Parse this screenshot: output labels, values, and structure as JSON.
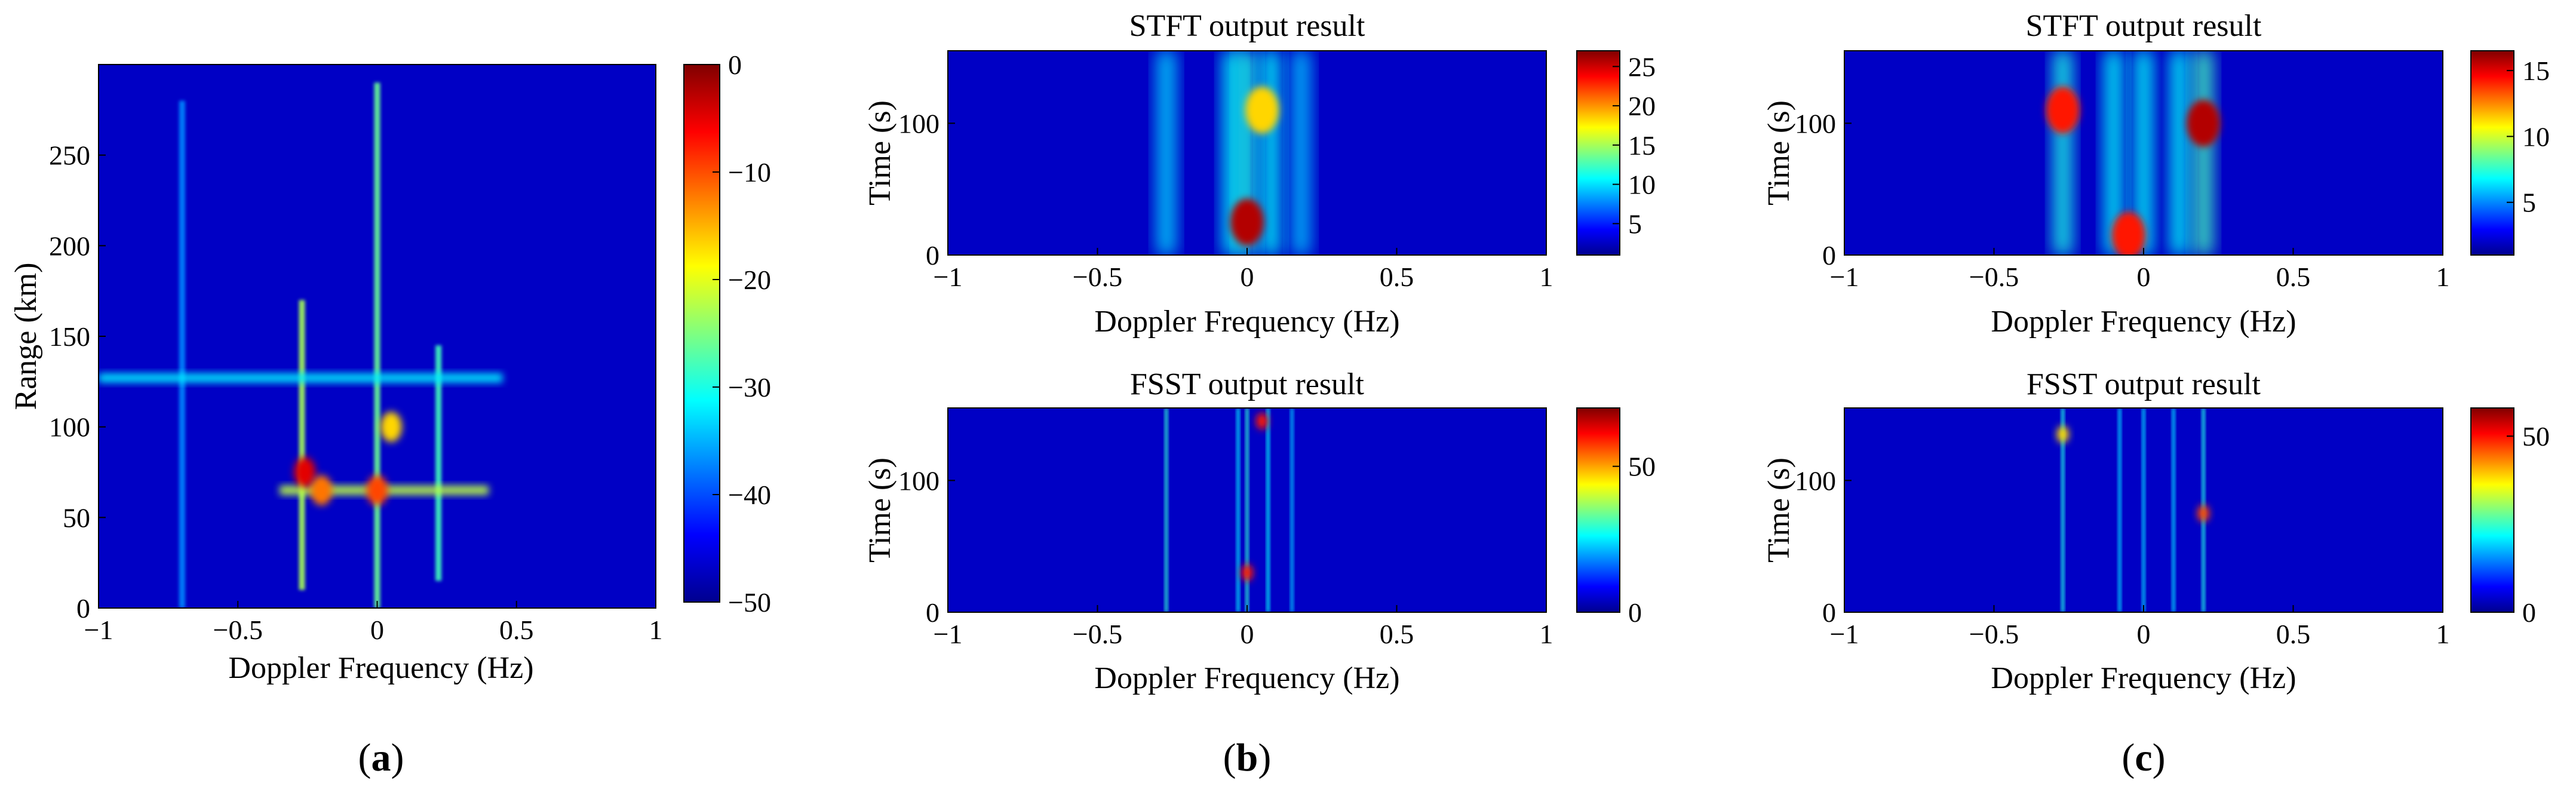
{
  "chart_data": [
    {
      "id": "a",
      "type": "heatmap",
      "title": "",
      "xlabel": "Doppler Frequency (Hz)",
      "ylabel": "Range (km)",
      "xlim": [
        -1,
        1
      ],
      "ylim": [
        0,
        300
      ],
      "xticks": [
        -1,
        -0.5,
        0,
        0.5,
        1
      ],
      "xtick_labels": [
        "−1",
        "−0.5",
        "0",
        "0.5",
        "1"
      ],
      "yticks": [
        0,
        50,
        100,
        150,
        200,
        250
      ],
      "ytick_labels": [
        "0",
        "50",
        "100",
        "150",
        "200",
        "250"
      ],
      "colorbar": {
        "min": -50,
        "max": 0,
        "ticks": [
          0,
          -10,
          -20,
          -30,
          -40,
          -50
        ],
        "tick_labels": [
          "0",
          "−10",
          "−20",
          "−30",
          "−40",
          "−50"
        ]
      },
      "features": [
        {
          "kind": "vline",
          "x": -0.27,
          "y0": 10,
          "y1": 170,
          "level": 0.85
        },
        {
          "kind": "vline",
          "x": 0.0,
          "y0": 0,
          "y1": 290,
          "level": 0.7
        },
        {
          "kind": "vline",
          "x": 0.22,
          "y0": 15,
          "y1": 145,
          "level": 0.6
        },
        {
          "kind": "vline",
          "x": -0.7,
          "y0": 0,
          "y1": 280,
          "level": 0.15
        },
        {
          "kind": "hline",
          "y": 65,
          "x0": -0.35,
          "x1": 0.4,
          "level": 0.8
        },
        {
          "kind": "hline",
          "y": 127,
          "x0": -1.0,
          "x1": 0.45,
          "level": 0.35
        },
        {
          "kind": "blob",
          "x": -0.26,
          "y": 75,
          "level": 0.95
        },
        {
          "kind": "blob",
          "x": -0.2,
          "y": 65,
          "level": 0.8
        },
        {
          "kind": "blob",
          "x": 0.0,
          "y": 65,
          "level": 0.85
        },
        {
          "kind": "blob",
          "x": 0.05,
          "y": 100,
          "level": 0.7
        }
      ],
      "panel_label": "(a)",
      "panel_letter": "a"
    },
    {
      "id": "b-top",
      "type": "heatmap",
      "title": "STFT output result",
      "xlabel": "Doppler Frequency (Hz)",
      "ylabel": "Time (s)",
      "xlim": [
        -1,
        1
      ],
      "ylim": [
        0,
        155
      ],
      "xticks": [
        -1,
        -0.5,
        0,
        0.5,
        1
      ],
      "xtick_labels": [
        "−1",
        "−0.5",
        "0",
        "0.5",
        "1"
      ],
      "yticks": [
        0,
        100
      ],
      "ytick_labels": [
        "0",
        "100"
      ],
      "colorbar": {
        "min": 1,
        "max": 27,
        "ticks": [
          25,
          20,
          15,
          10,
          5
        ],
        "tick_labels": [
          "25",
          "20",
          "15",
          "10",
          "5"
        ]
      },
      "features": [
        {
          "kind": "vline",
          "x": -0.27,
          "y0": 0,
          "y1": 155,
          "level": 0.35
        },
        {
          "kind": "vline",
          "x": -0.05,
          "y0": 0,
          "y1": 155,
          "level": 0.45
        },
        {
          "kind": "vline",
          "x": 0.0,
          "y0": 0,
          "y1": 155,
          "level": 0.5
        },
        {
          "kind": "vline",
          "x": 0.08,
          "y0": 0,
          "y1": 155,
          "level": 0.45
        },
        {
          "kind": "vline",
          "x": 0.18,
          "y0": 0,
          "y1": 155,
          "level": 0.3
        },
        {
          "kind": "blob",
          "x": 0.0,
          "y": 25,
          "level": 1.0
        },
        {
          "kind": "blob",
          "x": 0.05,
          "y": 110,
          "level": 0.7
        }
      ]
    },
    {
      "id": "b-bottom",
      "type": "heatmap",
      "title": "FSST output result",
      "xlabel": "Doppler Frequency (Hz)",
      "ylabel": "Time (s)",
      "xlim": [
        -1,
        1
      ],
      "ylim": [
        0,
        155
      ],
      "xticks": [
        -1,
        -0.5,
        0,
        0.5,
        1
      ],
      "xtick_labels": [
        "−1",
        "−0.5",
        "0",
        "0.5",
        "1"
      ],
      "yticks": [
        0,
        100
      ],
      "ytick_labels": [
        "0",
        "100"
      ],
      "colorbar": {
        "min": 0,
        "max": 70,
        "ticks": [
          50,
          0
        ],
        "tick_labels": [
          "50",
          "0"
        ]
      },
      "features": [
        {
          "kind": "vline",
          "x": -0.27,
          "y0": 0,
          "y1": 155,
          "level": 0.55
        },
        {
          "kind": "vline",
          "x": -0.03,
          "y0": 0,
          "y1": 155,
          "level": 0.4
        },
        {
          "kind": "vline",
          "x": 0.0,
          "y0": 0,
          "y1": 155,
          "level": 0.55
        },
        {
          "kind": "vline",
          "x": 0.07,
          "y0": 0,
          "y1": 155,
          "level": 0.45
        },
        {
          "kind": "vline",
          "x": 0.15,
          "y0": 0,
          "y1": 155,
          "level": 0.3
        },
        {
          "kind": "blob",
          "x": 0.0,
          "y": 30,
          "level": 0.9
        },
        {
          "kind": "blob",
          "x": 0.05,
          "y": 145,
          "level": 0.9
        }
      ],
      "panel_label": "(b)",
      "panel_letter": "b"
    },
    {
      "id": "c-top",
      "type": "heatmap",
      "title": "STFT output result",
      "xlabel": "Doppler Frequency (Hz)",
      "ylabel": "Time (s)",
      "xlim": [
        -1,
        1
      ],
      "ylim": [
        0,
        155
      ],
      "xticks": [
        -1,
        -0.5,
        0,
        0.5,
        1
      ],
      "xtick_labels": [
        "−1",
        "−0.5",
        "0",
        "0.5",
        "1"
      ],
      "yticks": [
        0,
        100
      ],
      "ytick_labels": [
        "0",
        "100"
      ],
      "colorbar": {
        "min": 1,
        "max": 16.5,
        "ticks": [
          15,
          10,
          5
        ],
        "tick_labels": [
          "15",
          "10",
          "5"
        ]
      },
      "features": [
        {
          "kind": "vline",
          "x": -0.27,
          "y0": 0,
          "y1": 155,
          "level": 0.5
        },
        {
          "kind": "vline",
          "x": -0.1,
          "y0": 0,
          "y1": 155,
          "level": 0.45
        },
        {
          "kind": "vline",
          "x": 0.0,
          "y0": 0,
          "y1": 155,
          "level": 0.45
        },
        {
          "kind": "vline",
          "x": 0.12,
          "y0": 0,
          "y1": 155,
          "level": 0.45
        },
        {
          "kind": "vline",
          "x": 0.2,
          "y0": 0,
          "y1": 155,
          "level": 0.6
        },
        {
          "kind": "blob",
          "x": -0.27,
          "y": 110,
          "level": 0.9
        },
        {
          "kind": "blob",
          "x": 0.2,
          "y": 100,
          "level": 1.0
        },
        {
          "kind": "blob",
          "x": -0.05,
          "y": 15,
          "level": 0.9
        }
      ]
    },
    {
      "id": "c-bottom",
      "type": "heatmap",
      "title": "FSST output result",
      "xlabel": "Doppler Frequency (Hz)",
      "ylabel": "Time (s)",
      "xlim": [
        -1,
        1
      ],
      "ylim": [
        0,
        155
      ],
      "xticks": [
        -1,
        -0.5,
        0,
        0.5,
        1
      ],
      "xtick_labels": [
        "−1",
        "−0.5",
        "0",
        "0.5",
        "1"
      ],
      "yticks": [
        0,
        100
      ],
      "ytick_labels": [
        "0",
        "100"
      ],
      "colorbar": {
        "min": 0,
        "max": 58,
        "ticks": [
          50,
          0
        ],
        "tick_labels": [
          "50",
          "0"
        ]
      },
      "features": [
        {
          "kind": "vline",
          "x": -0.27,
          "y0": 0,
          "y1": 155,
          "level": 0.5
        },
        {
          "kind": "vline",
          "x": -0.08,
          "y0": 0,
          "y1": 155,
          "level": 0.35
        },
        {
          "kind": "vline",
          "x": 0.0,
          "y0": 0,
          "y1": 155,
          "level": 0.35
        },
        {
          "kind": "vline",
          "x": 0.1,
          "y0": 0,
          "y1": 155,
          "level": 0.35
        },
        {
          "kind": "vline",
          "x": 0.2,
          "y0": 0,
          "y1": 155,
          "level": 0.5
        },
        {
          "kind": "blob",
          "x": 0.2,
          "y": 75,
          "level": 0.85
        },
        {
          "kind": "blob",
          "x": -0.27,
          "y": 135,
          "level": 0.7
        }
      ],
      "panel_label": "(c)",
      "panel_letter": "c"
    }
  ]
}
